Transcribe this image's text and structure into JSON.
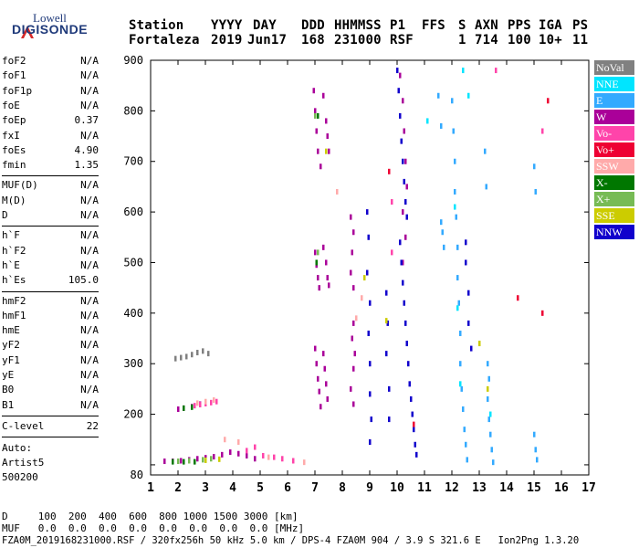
{
  "logo": {
    "line1": "Lowell",
    "line2": "DIGISONDE"
  },
  "header": {
    "row1": [
      {
        "key": "station_label",
        "text": "Station"
      },
      {
        "key": "yyyy_label",
        "text": "YYYY"
      },
      {
        "key": "day_label",
        "text": "DAY"
      },
      {
        "key": "ddd_label",
        "text": "DDD"
      },
      {
        "key": "hhmmss_label",
        "text": "HHMMSS"
      },
      {
        "key": "p1_label",
        "text": "P1"
      },
      {
        "key": "ffs_label",
        "text": "FFS"
      },
      {
        "key": "s_label",
        "text": "S"
      },
      {
        "key": "axn_label",
        "text": "AXN"
      },
      {
        "key": "pps_label",
        "text": "PPS"
      },
      {
        "key": "iga_label",
        "text": "IGA"
      },
      {
        "key": "ps_label",
        "text": "PS"
      }
    ],
    "row2": [
      {
        "key": "station",
        "text": "Fortaleza"
      },
      {
        "key": "yyyy",
        "text": "2019"
      },
      {
        "key": "day",
        "text": "Jun17"
      },
      {
        "key": "ddd",
        "text": "168"
      },
      {
        "key": "hhmmss",
        "text": "231000"
      },
      {
        "key": "p1",
        "text": "RSF"
      },
      {
        "key": "ffs",
        "text": ""
      },
      {
        "key": "s",
        "text": "1"
      },
      {
        "key": "axn",
        "text": "714"
      },
      {
        "key": "pps",
        "text": "100"
      },
      {
        "key": "iga",
        "text": "10+"
      },
      {
        "key": "ps",
        "text": "11"
      }
    ]
  },
  "params": {
    "group1": [
      {
        "label": "foF2",
        "value": "N/A"
      },
      {
        "label": "foF1",
        "value": "N/A"
      },
      {
        "label": "foF1p",
        "value": "N/A"
      },
      {
        "label": "foE",
        "value": "N/A"
      },
      {
        "label": "foEp",
        "value": "0.37"
      },
      {
        "label": "fxI",
        "value": "N/A"
      },
      {
        "label": "foEs",
        "value": "4.90"
      },
      {
        "label": "fmin",
        "value": "1.35"
      }
    ],
    "group2": [
      {
        "label": "MUF(D)",
        "value": "N/A"
      },
      {
        "label": "M(D)",
        "value": "N/A"
      },
      {
        "label": "D",
        "value": "N/A"
      }
    ],
    "group3": [
      {
        "label": "h`F",
        "value": "N/A"
      },
      {
        "label": "h`F2",
        "value": "N/A"
      },
      {
        "label": "h`E",
        "value": "N/A"
      },
      {
        "label": "h`Es",
        "value": "105.0"
      }
    ],
    "group4": [
      {
        "label": "hmF2",
        "value": "N/A"
      },
      {
        "label": "hmF1",
        "value": "N/A"
      },
      {
        "label": "hmE",
        "value": "N/A"
      },
      {
        "label": "yF2",
        "value": "N/A"
      },
      {
        "label": "yF1",
        "value": "N/A"
      },
      {
        "label": "yE",
        "value": "N/A"
      },
      {
        "label": "B0",
        "value": "N/A"
      },
      {
        "label": "B1",
        "value": "N/A"
      }
    ],
    "clevel": {
      "label": "C-level",
      "value": "22"
    },
    "auto": {
      "line1": "Auto:",
      "line2": "Artist5",
      "line3": "500200"
    }
  },
  "legend": [
    {
      "label": "NoVal",
      "color": "#808080",
      "text_color": "#ffffff"
    },
    {
      "label": "NNE",
      "color": "#00e5ff",
      "text_color": "#ffffff"
    },
    {
      "label": "E",
      "color": "#33aaff",
      "text_color": "#ffffff"
    },
    {
      "label": "W",
      "color": "#aa0099",
      "text_color": "#ffffff"
    },
    {
      "label": "Vo-",
      "color": "#ff44aa",
      "text_color": "#ffffff"
    },
    {
      "label": "Vo+",
      "color": "#ee0033",
      "text_color": "#ffffff"
    },
    {
      "label": "SSW",
      "color": "#ffaaaa",
      "text_color": "#ffffff"
    },
    {
      "label": "X-",
      "color": "#007700",
      "text_color": "#ffffff"
    },
    {
      "label": "X+",
      "color": "#77bb55",
      "text_color": "#ffffff"
    },
    {
      "label": "SSE",
      "color": "#cccc00",
      "text_color": "#ffffff"
    },
    {
      "label": "NNW",
      "color": "#1100cc",
      "text_color": "#ffffff"
    }
  ],
  "bottom": {
    "d_row": "D     100  200  400  600  800 1000 1500 3000 [km]",
    "muf_row": "MUF   0.0  0.0  0.0  0.0  0.0  0.0  0.0  0.0 [MHz]",
    "footer": "FZA0M_2019168231000.RSF / 320fx256h 50 kHz 5.0 km / DPS-4 FZA0M 904 / 3.9 S 321.6 E   Ion2Png 1.3.20"
  },
  "chart_data": {
    "type": "scatter",
    "title": "",
    "xlabel": "",
    "ylabel": "",
    "xlim": [
      1,
      17
    ],
    "ylim": [
      80,
      900
    ],
    "xticks": [
      1,
      2,
      3,
      4,
      5,
      6,
      7,
      8,
      9,
      10,
      11,
      12,
      13,
      14,
      15,
      16,
      17
    ],
    "yticks": [
      80,
      100,
      200,
      300,
      400,
      500,
      600,
      700,
      800,
      900
    ],
    "ytick_labels": [
      "80",
      "",
      "200",
      "300",
      "400",
      "500",
      "600",
      "700",
      "800",
      "900"
    ],
    "grid": false,
    "legend_position": "right",
    "series": [
      {
        "name": "W",
        "color": "#aa0099",
        "points": [
          [
            1.5,
            107
          ],
          [
            1.8,
            107
          ],
          [
            2.1,
            108
          ],
          [
            2.4,
            110
          ],
          [
            2.7,
            112
          ],
          [
            3.0,
            114
          ],
          [
            3.3,
            116
          ],
          [
            3.6,
            120
          ],
          [
            3.9,
            125
          ],
          [
            4.2,
            122
          ],
          [
            4.5,
            118
          ],
          [
            4.8,
            112
          ],
          [
            2.0,
            210
          ],
          [
            2.2,
            212
          ],
          [
            2.5,
            215
          ],
          [
            2.8,
            220
          ],
          [
            6.95,
            840
          ],
          [
            7.0,
            800
          ],
          [
            7.05,
            760
          ],
          [
            7.1,
            720
          ],
          [
            7.2,
            690
          ],
          [
            7.3,
            830
          ],
          [
            7.4,
            780
          ],
          [
            7.45,
            750
          ],
          [
            7.5,
            720
          ],
          [
            7.0,
            520
          ],
          [
            7.05,
            495
          ],
          [
            7.1,
            470
          ],
          [
            7.15,
            450
          ],
          [
            7.3,
            530
          ],
          [
            7.4,
            500
          ],
          [
            7.45,
            470
          ],
          [
            7.5,
            455
          ],
          [
            7.0,
            330
          ],
          [
            7.05,
            300
          ],
          [
            7.1,
            270
          ],
          [
            7.15,
            245
          ],
          [
            7.3,
            320
          ],
          [
            7.35,
            290
          ],
          [
            7.4,
            260
          ],
          [
            7.45,
            230
          ],
          [
            7.2,
            215
          ],
          [
            8.3,
            590
          ],
          [
            8.4,
            560
          ],
          [
            8.35,
            520
          ],
          [
            8.3,
            480
          ],
          [
            8.4,
            450
          ],
          [
            8.4,
            380
          ],
          [
            8.35,
            350
          ],
          [
            8.45,
            320
          ],
          [
            8.4,
            290
          ],
          [
            8.3,
            250
          ],
          [
            8.4,
            220
          ],
          [
            10.1,
            870
          ],
          [
            10.2,
            820
          ],
          [
            10.25,
            760
          ],
          [
            10.3,
            700
          ],
          [
            10.35,
            650
          ],
          [
            10.2,
            600
          ],
          [
            10.3,
            550
          ],
          [
            10.2,
            500
          ]
        ]
      },
      {
        "name": "NNW",
        "color": "#1100cc",
        "points": [
          [
            8.9,
            600
          ],
          [
            8.95,
            550
          ],
          [
            8.9,
            480
          ],
          [
            9.0,
            420
          ],
          [
            8.95,
            360
          ],
          [
            9.0,
            300
          ],
          [
            9.0,
            240
          ],
          [
            9.05,
            190
          ],
          [
            9.0,
            145
          ],
          [
            10.0,
            880
          ],
          [
            10.05,
            840
          ],
          [
            10.1,
            790
          ],
          [
            10.15,
            740
          ],
          [
            10.2,
            700
          ],
          [
            10.25,
            660
          ],
          [
            10.3,
            620
          ],
          [
            10.35,
            590
          ],
          [
            10.1,
            540
          ],
          [
            10.15,
            500
          ],
          [
            10.2,
            460
          ],
          [
            10.25,
            420
          ],
          [
            10.3,
            380
          ],
          [
            10.35,
            340
          ],
          [
            10.4,
            300
          ],
          [
            10.45,
            260
          ],
          [
            10.5,
            230
          ],
          [
            10.55,
            200
          ],
          [
            10.6,
            170
          ],
          [
            10.65,
            140
          ],
          [
            10.7,
            120
          ],
          [
            9.6,
            440
          ],
          [
            9.65,
            380
          ],
          [
            9.6,
            320
          ],
          [
            9.7,
            250
          ],
          [
            9.7,
            190
          ],
          [
            12.5,
            540
          ],
          [
            12.5,
            500
          ],
          [
            12.6,
            440
          ],
          [
            12.6,
            380
          ],
          [
            12.7,
            330
          ]
        ]
      },
      {
        "name": "E",
        "color": "#33aaff",
        "points": [
          [
            12.0,
            820
          ],
          [
            12.05,
            760
          ],
          [
            12.1,
            700
          ],
          [
            12.1,
            640
          ],
          [
            12.15,
            590
          ],
          [
            12.2,
            530
          ],
          [
            12.2,
            470
          ],
          [
            12.25,
            420
          ],
          [
            12.3,
            360
          ],
          [
            12.3,
            300
          ],
          [
            12.35,
            250
          ],
          [
            12.4,
            210
          ],
          [
            12.45,
            170
          ],
          [
            12.5,
            140
          ],
          [
            12.55,
            110
          ],
          [
            13.2,
            720
          ],
          [
            13.25,
            650
          ],
          [
            13.3,
            300
          ],
          [
            13.35,
            270
          ],
          [
            13.3,
            230
          ],
          [
            13.35,
            190
          ],
          [
            13.4,
            160
          ],
          [
            13.45,
            130
          ],
          [
            13.5,
            105
          ],
          [
            11.5,
            830
          ],
          [
            11.6,
            770
          ],
          [
            11.6,
            580
          ],
          [
            11.65,
            560
          ],
          [
            11.7,
            530
          ],
          [
            15.0,
            690
          ],
          [
            15.05,
            640
          ],
          [
            15.0,
            160
          ],
          [
            15.05,
            130
          ],
          [
            15.1,
            110
          ]
        ]
      },
      {
        "name": "Vo-",
        "color": "#ff44aa",
        "points": [
          [
            2.6,
            217
          ],
          [
            2.8,
            219
          ],
          [
            3.0,
            221
          ],
          [
            3.2,
            223
          ],
          [
            3.4,
            225
          ],
          [
            4.5,
            128
          ],
          [
            4.8,
            135
          ],
          [
            5.1,
            118
          ],
          [
            5.5,
            115
          ],
          [
            5.8,
            112
          ],
          [
            6.2,
            108
          ],
          [
            9.8,
            620
          ],
          [
            9.8,
            520
          ],
          [
            13.6,
            880
          ],
          [
            15.3,
            760
          ]
        ]
      },
      {
        "name": "SSW",
        "color": "#ffaaaa",
        "points": [
          [
            2.7,
            222
          ],
          [
            3.0,
            225
          ],
          [
            3.3,
            228
          ],
          [
            3.7,
            150
          ],
          [
            4.2,
            145
          ],
          [
            5.3,
            115
          ],
          [
            6.6,
            105
          ],
          [
            7.8,
            640
          ],
          [
            8.5,
            390
          ],
          [
            8.7,
            430
          ]
        ]
      },
      {
        "name": "X-",
        "color": "#007700",
        "points": [
          [
            1.8,
            106
          ],
          [
            2.2,
            106
          ],
          [
            2.6,
            106
          ],
          [
            2.2,
            212
          ],
          [
            2.5,
            214
          ],
          [
            7.1,
            790
          ],
          [
            7.05,
            500
          ]
        ]
      },
      {
        "name": "X+",
        "color": "#77bb55",
        "points": [
          [
            2.0,
            107
          ],
          [
            2.4,
            108
          ],
          [
            2.9,
            110
          ],
          [
            3.2,
            112
          ],
          [
            7.0,
            790
          ],
          [
            7.1,
            520
          ]
        ]
      },
      {
        "name": "SSE",
        "color": "#cccc00",
        "points": [
          [
            3.0,
            109
          ],
          [
            3.5,
            111
          ],
          [
            7.4,
            720
          ],
          [
            8.8,
            470
          ],
          [
            9.6,
            385
          ],
          [
            13.0,
            340
          ],
          [
            13.3,
            250
          ]
        ]
      },
      {
        "name": "NNE",
        "color": "#00e5ff",
        "points": [
          [
            12.1,
            610
          ],
          [
            12.2,
            410
          ],
          [
            12.3,
            260
          ],
          [
            13.4,
            200
          ],
          [
            11.1,
            780
          ],
          [
            12.4,
            880
          ],
          [
            12.6,
            830
          ]
        ]
      },
      {
        "name": "Vo+",
        "color": "#ee0033",
        "points": [
          [
            15.5,
            820
          ],
          [
            15.3,
            400
          ],
          [
            14.4,
            430
          ],
          [
            10.6,
            180
          ],
          [
            9.7,
            680
          ]
        ]
      },
      {
        "name": "NoVal",
        "color": "#808080",
        "points": [
          [
            1.9,
            310
          ],
          [
            2.1,
            312
          ],
          [
            2.3,
            314
          ],
          [
            2.5,
            318
          ],
          [
            2.7,
            322
          ],
          [
            2.9,
            325
          ],
          [
            3.1,
            320
          ]
        ]
      }
    ]
  }
}
